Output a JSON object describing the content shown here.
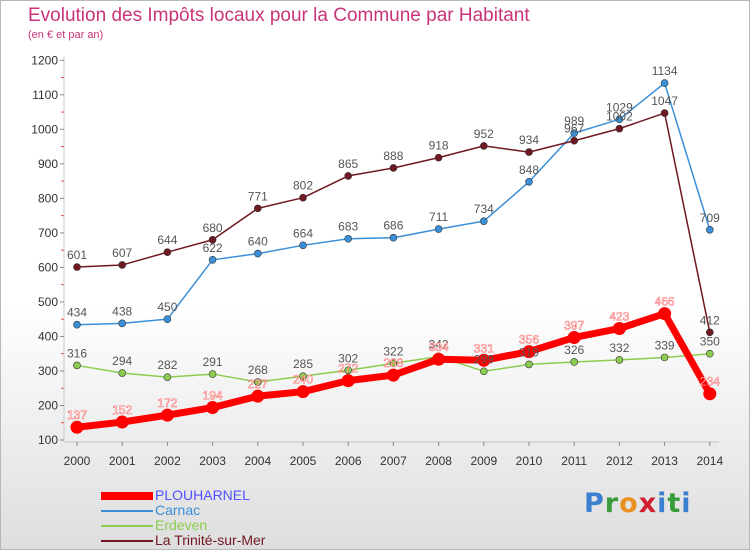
{
  "page": {
    "title": "Evolution des Impôts locaux pour la Commune par Habitant",
    "subtitle": "(en € et par an)",
    "logo": [
      "P",
      "r",
      "o",
      "x",
      "i",
      "t",
      "i"
    ]
  },
  "colors": {
    "title": "#c8347a",
    "axis": "#c8c8c8",
    "tick_marks": "#e05050",
    "label_text": "#555555",
    "logo": [
      "#3a7fd0",
      "#3a9b3a",
      "#e89020",
      "#d02030",
      "#3a7fd0",
      "#3a9b3a",
      "#3a7fd0"
    ]
  },
  "chart_data": {
    "type": "line",
    "title": "Evolution des Impôts locaux pour la Commune par Habitant",
    "subtitle": "(en € et par an)",
    "x": [
      "2000",
      "2001",
      "2002",
      "2003",
      "2004",
      "2005",
      "2006",
      "2007",
      "2008",
      "2009",
      "2010",
      "2011",
      "2012",
      "2013",
      "2014"
    ],
    "ylim": [
      100,
      1200
    ],
    "yticks": [
      100,
      200,
      300,
      400,
      500,
      600,
      700,
      800,
      900,
      1000,
      1100,
      1200
    ],
    "grid": false,
    "legend_position": "bottom-left",
    "series": [
      {
        "name": "PLOUHARNEL",
        "color": "#ff0000",
        "label_color": "#ffffff",
        "legend_text_color": "#5050ff",
        "width": 7,
        "marker": 6,
        "values": [
          137,
          152,
          172,
          194,
          227,
          240,
          272,
          288,
          334,
          331,
          356,
          397,
          423,
          466,
          234
        ],
        "labels": [
          "137",
          "152",
          "172",
          "194",
          "227",
          "240",
          "272",
          "288",
          "334",
          "331",
          "356",
          "397",
          "423",
          "466",
          "234"
        ]
      },
      {
        "name": "Carnac",
        "color": "#3a8fd8",
        "label_color": "#555555",
        "legend_text_color": "#3a8fd8",
        "width": 1.5,
        "marker": 3.5,
        "values": [
          434,
          438,
          450,
          622,
          640,
          664,
          683,
          686,
          711,
          734,
          848,
          989,
          1029,
          1134,
          709
        ],
        "labels": [
          "434",
          "438",
          "450",
          "622",
          "640",
          "664",
          "683",
          "686",
          "711",
          "734",
          "848",
          "989",
          "1029",
          "1134",
          "709"
        ]
      },
      {
        "name": "Erdeven",
        "color": "#8ccc50",
        "label_color": "#555555",
        "legend_text_color": "#8ccc50",
        "width": 1.5,
        "marker": 3.5,
        "values": [
          316,
          294,
          282,
          291,
          268,
          285,
          302,
          322,
          342,
          299,
          319,
          326,
          332,
          339,
          350
        ],
        "labels": [
          "316",
          "294",
          "282",
          "291",
          "268",
          "285",
          "302",
          "322",
          "342",
          "299",
          "319",
          "326",
          "332",
          "339",
          "350"
        ]
      },
      {
        "name": "La Trinité-sur-Mer",
        "color": "#701820",
        "label_color": "#555555",
        "legend_text_color": "#701820",
        "width": 1.5,
        "marker": 3.5,
        "values": [
          601,
          607,
          644,
          680,
          771,
          802,
          865,
          888,
          918,
          952,
          934,
          967,
          1002,
          1047,
          412
        ],
        "labels": [
          "601",
          "607",
          "644",
          "680",
          "771",
          "802",
          "865",
          "888",
          "918",
          "952",
          "934",
          "967",
          "1002",
          "1047",
          "412"
        ]
      }
    ]
  }
}
